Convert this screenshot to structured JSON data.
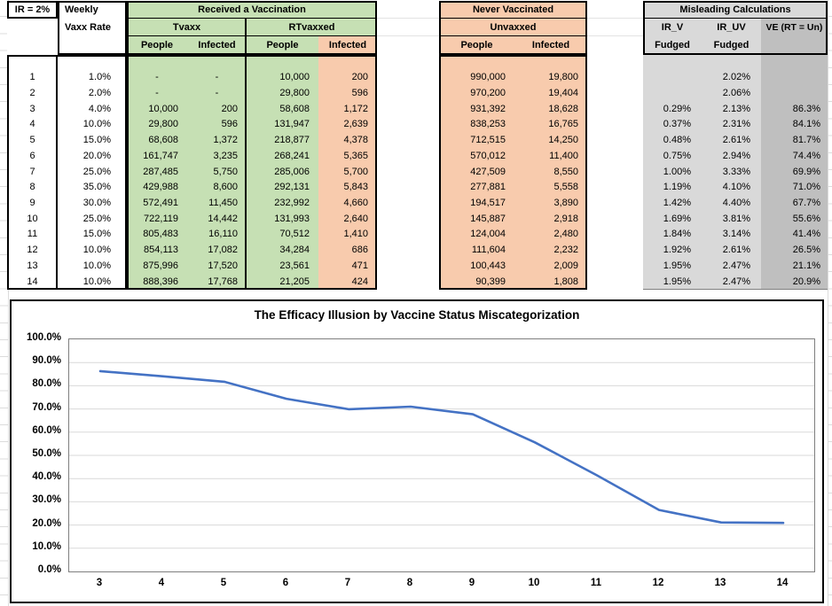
{
  "meta": {
    "ir_label": "IR = 2%",
    "weekly_line1": "Weekly",
    "weekly_line2": "Vaxx Rate"
  },
  "colors": {
    "green_fill": "#c6e0b4",
    "orange_fill": "#f8cbad",
    "gray_light": "#d9d9d9",
    "gray_dark": "#bfbfbf",
    "line_blue": "#4472c4"
  },
  "table": {
    "groups": {
      "received": "Received a Vaccination",
      "never": "Never Vaccinated",
      "misleading": "Misleading Calculations"
    },
    "subheaders": {
      "tvaxx": "Tvaxx",
      "rtvaxxed": "RTvaxxed",
      "unvaxxed": "Unvaxxed",
      "people": "People",
      "infected": "Infected",
      "ir_v": "IR_V",
      "ir_uv": "IR_UV",
      "ve": "VE (RT = Un)",
      "fudged": "Fudged"
    },
    "rows": [
      {
        "week": "1",
        "rate": "1.0%",
        "tvaxx_people": "-",
        "tvaxx_infected": "-",
        "rt_people": "10,000",
        "rt_infected": "200",
        "unvaxxed_people": "990,000",
        "unvaxxed_infected": "19,800",
        "ir_v": "",
        "ir_uv": "2.02%",
        "ve": ""
      },
      {
        "week": "2",
        "rate": "2.0%",
        "tvaxx_people": "-",
        "tvaxx_infected": "-",
        "rt_people": "29,800",
        "rt_infected": "596",
        "unvaxxed_people": "970,200",
        "unvaxxed_infected": "19,404",
        "ir_v": "",
        "ir_uv": "2.06%",
        "ve": ""
      },
      {
        "week": "3",
        "rate": "4.0%",
        "tvaxx_people": "10,000",
        "tvaxx_infected": "200",
        "rt_people": "58,608",
        "rt_infected": "1,172",
        "unvaxxed_people": "931,392",
        "unvaxxed_infected": "18,628",
        "ir_v": "0.29%",
        "ir_uv": "2.13%",
        "ve": "86.3%"
      },
      {
        "week": "4",
        "rate": "10.0%",
        "tvaxx_people": "29,800",
        "tvaxx_infected": "596",
        "rt_people": "131,947",
        "rt_infected": "2,639",
        "unvaxxed_people": "838,253",
        "unvaxxed_infected": "16,765",
        "ir_v": "0.37%",
        "ir_uv": "2.31%",
        "ve": "84.1%"
      },
      {
        "week": "5",
        "rate": "15.0%",
        "tvaxx_people": "68,608",
        "tvaxx_infected": "1,372",
        "rt_people": "218,877",
        "rt_infected": "4,378",
        "unvaxxed_people": "712,515",
        "unvaxxed_infected": "14,250",
        "ir_v": "0.48%",
        "ir_uv": "2.61%",
        "ve": "81.7%"
      },
      {
        "week": "6",
        "rate": "20.0%",
        "tvaxx_people": "161,747",
        "tvaxx_infected": "3,235",
        "rt_people": "268,241",
        "rt_infected": "5,365",
        "unvaxxed_people": "570,012",
        "unvaxxed_infected": "11,400",
        "ir_v": "0.75%",
        "ir_uv": "2.94%",
        "ve": "74.4%"
      },
      {
        "week": "7",
        "rate": "25.0%",
        "tvaxx_people": "287,485",
        "tvaxx_infected": "5,750",
        "rt_people": "285,006",
        "rt_infected": "5,700",
        "unvaxxed_people": "427,509",
        "unvaxxed_infected": "8,550",
        "ir_v": "1.00%",
        "ir_uv": "3.33%",
        "ve": "69.9%"
      },
      {
        "week": "8",
        "rate": "35.0%",
        "tvaxx_people": "429,988",
        "tvaxx_infected": "8,600",
        "rt_people": "292,131",
        "rt_infected": "5,843",
        "unvaxxed_people": "277,881",
        "unvaxxed_infected": "5,558",
        "ir_v": "1.19%",
        "ir_uv": "4.10%",
        "ve": "71.0%"
      },
      {
        "week": "9",
        "rate": "30.0%",
        "tvaxx_people": "572,491",
        "tvaxx_infected": "11,450",
        "rt_people": "232,992",
        "rt_infected": "4,660",
        "unvaxxed_people": "194,517",
        "unvaxxed_infected": "3,890",
        "ir_v": "1.42%",
        "ir_uv": "4.40%",
        "ve": "67.7%"
      },
      {
        "week": "10",
        "rate": "25.0%",
        "tvaxx_people": "722,119",
        "tvaxx_infected": "14,442",
        "rt_people": "131,993",
        "rt_infected": "2,640",
        "unvaxxed_people": "145,887",
        "unvaxxed_infected": "2,918",
        "ir_v": "1.69%",
        "ir_uv": "3.81%",
        "ve": "55.6%"
      },
      {
        "week": "11",
        "rate": "15.0%",
        "tvaxx_people": "805,483",
        "tvaxx_infected": "16,110",
        "rt_people": "70,512",
        "rt_infected": "1,410",
        "unvaxxed_people": "124,004",
        "unvaxxed_infected": "2,480",
        "ir_v": "1.84%",
        "ir_uv": "3.14%",
        "ve": "41.4%"
      },
      {
        "week": "12",
        "rate": "10.0%",
        "tvaxx_people": "854,113",
        "tvaxx_infected": "17,082",
        "rt_people": "34,284",
        "rt_infected": "686",
        "unvaxxed_people": "111,604",
        "unvaxxed_infected": "2,232",
        "ir_v": "1.92%",
        "ir_uv": "2.61%",
        "ve": "26.5%"
      },
      {
        "week": "13",
        "rate": "10.0%",
        "tvaxx_people": "875,996",
        "tvaxx_infected": "17,520",
        "rt_people": "23,561",
        "rt_infected": "471",
        "unvaxxed_people": "100,443",
        "unvaxxed_infected": "2,009",
        "ir_v": "1.95%",
        "ir_uv": "2.47%",
        "ve": "21.1%"
      },
      {
        "week": "14",
        "rate": "10.0%",
        "tvaxx_people": "888,396",
        "tvaxx_infected": "17,768",
        "rt_people": "21,205",
        "rt_infected": "424",
        "unvaxxed_people": "90,399",
        "unvaxxed_infected": "1,808",
        "ir_v": "1.95%",
        "ir_uv": "2.47%",
        "ve": "20.9%"
      }
    ]
  },
  "chart_data": {
    "type": "line",
    "title": "The Efficacy Illusion by Vaccine Status Miscategorization",
    "x": [
      3,
      4,
      5,
      6,
      7,
      8,
      9,
      10,
      11,
      12,
      13,
      14
    ],
    "series": [
      {
        "name": "VE (RT = Un)",
        "values": [
          86.3,
          84.1,
          81.7,
          74.4,
          69.9,
          71.0,
          67.7,
          55.6,
          41.4,
          26.5,
          21.1,
          20.9
        ]
      }
    ],
    "ylim": [
      0,
      100
    ],
    "ytick_step": 10,
    "ytick_labels": [
      "0.0%",
      "10.0%",
      "20.0%",
      "30.0%",
      "40.0%",
      "50.0%",
      "60.0%",
      "70.0%",
      "80.0%",
      "90.0%",
      "100.0%"
    ],
    "grid": true,
    "legend": "none",
    "line_color": "#4472c4"
  }
}
